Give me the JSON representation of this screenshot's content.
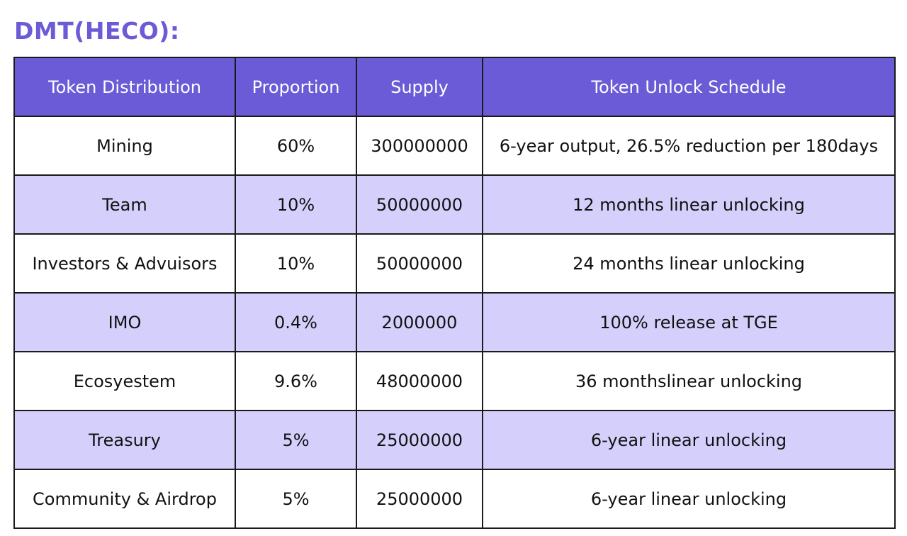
{
  "page": {
    "title": "DMT(HECO):"
  },
  "colors": {
    "accent": "#6b5bd6",
    "row_alt": "#d5cffb",
    "row_plain": "#ffffff",
    "border": "#1a1a1a"
  },
  "table": {
    "headers": [
      "Token Distribution",
      "Proportion",
      "Supply",
      "Token Unlock Schedule"
    ],
    "rows": [
      {
        "distribution": "Mining",
        "proportion": "60%",
        "supply": "300000000",
        "schedule": "6-year output, 26.5% reduction per 180days"
      },
      {
        "distribution": "Team",
        "proportion": "10%",
        "supply": "50000000",
        "schedule": "12 months linear unlocking"
      },
      {
        "distribution": "Investors & Advuisors",
        "proportion": "10%",
        "supply": "50000000",
        "schedule": "24 months linear unlocking"
      },
      {
        "distribution": "IMO",
        "proportion": "0.4%",
        "supply": "2000000",
        "schedule": "100% release at TGE"
      },
      {
        "distribution": "Ecosyestem",
        "proportion": "9.6%",
        "supply": "48000000",
        "schedule": "36 monthslinear unlocking"
      },
      {
        "distribution": "Treasury",
        "proportion": "5%",
        "supply": "25000000",
        "schedule": "6-year linear unlocking"
      },
      {
        "distribution": "Community & Airdrop",
        "proportion": "5%",
        "supply": "25000000",
        "schedule": "6-year linear unlocking"
      }
    ]
  }
}
